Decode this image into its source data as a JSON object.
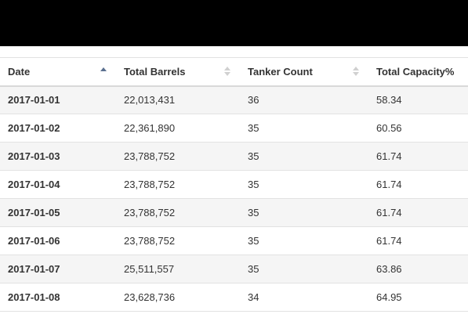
{
  "table": {
    "columns": [
      {
        "label": "Date",
        "sort": "asc"
      },
      {
        "label": "Total Barrels",
        "sort": "none"
      },
      {
        "label": "Tanker Count",
        "sort": "none"
      },
      {
        "label": "Total Capacity%",
        "sort": "none"
      }
    ],
    "rows": [
      {
        "date": "2017-01-01",
        "total_barrels": "22,013,431",
        "tanker_count": "36",
        "total_capacity": "58.34"
      },
      {
        "date": "2017-01-02",
        "total_barrels": "22,361,890",
        "tanker_count": "35",
        "total_capacity": "60.56"
      },
      {
        "date": "2017-01-03",
        "total_barrels": "23,788,752",
        "tanker_count": "35",
        "total_capacity": "61.74"
      },
      {
        "date": "2017-01-04",
        "total_barrels": "23,788,752",
        "tanker_count": "35",
        "total_capacity": "61.74"
      },
      {
        "date": "2017-01-05",
        "total_barrels": "23,788,752",
        "tanker_count": "35",
        "total_capacity": "61.74"
      },
      {
        "date": "2017-01-06",
        "total_barrels": "23,788,752",
        "tanker_count": "35",
        "total_capacity": "61.74"
      },
      {
        "date": "2017-01-07",
        "total_barrels": "25,511,557",
        "tanker_count": "35",
        "total_capacity": "63.86"
      },
      {
        "date": "2017-01-08",
        "total_barrels": "23,628,736",
        "tanker_count": "34",
        "total_capacity": "64.95"
      }
    ]
  },
  "colors": {
    "header_bar": "#000000",
    "sort_active": "#5a6f8f",
    "sort_inactive": "#d0d0d0",
    "row_stripe": "#f5f5f5"
  },
  "icons": {
    "sort_ascending": "sort-ascending-icon",
    "sort_both": "sort-both-icon"
  }
}
